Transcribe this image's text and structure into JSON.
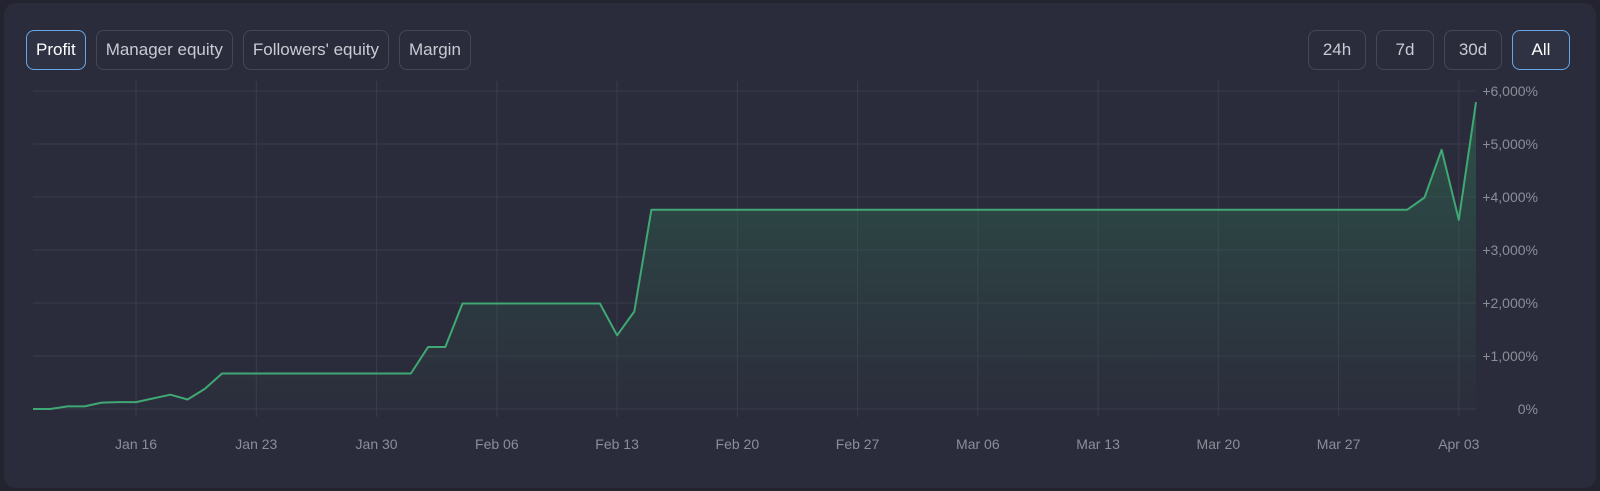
{
  "tabs": {
    "metric": [
      {
        "label": "Profit",
        "active": true
      },
      {
        "label": "Manager equity",
        "active": false
      },
      {
        "label": "Followers' equity",
        "active": false
      },
      {
        "label": "Margin",
        "active": false
      }
    ],
    "range": [
      {
        "label": "24h",
        "active": false
      },
      {
        "label": "7d",
        "active": false
      },
      {
        "label": "30d",
        "active": false
      },
      {
        "label": "All",
        "active": true
      }
    ]
  },
  "colors": {
    "line": "#3fa874",
    "fill": "#2f6e52",
    "grid": "#3a3c4b",
    "tab_active_border": "#6aa6e6"
  },
  "chart_data": {
    "type": "area",
    "x_start": "Jan 10",
    "x_end": "Apr 04",
    "x_tick_labels": [
      "Jan 16",
      "Jan 23",
      "Jan 30",
      "Feb 06",
      "Feb 13",
      "Feb 20",
      "Feb 27",
      "Mar 06",
      "Mar 13",
      "Mar 20",
      "Mar 27",
      "Apr 03"
    ],
    "y_tick_labels": [
      "0%",
      "+1,000%",
      "+2,000%",
      "+3,000%",
      "+4,000%",
      "+5,000%",
      "+6,000%"
    ],
    "y_ticks": [
      0,
      1000,
      2000,
      3000,
      4000,
      5000,
      6000
    ],
    "ylim": [
      0,
      6000
    ],
    "y_unit": "%",
    "grid": true,
    "y_axis_position": "right",
    "series": [
      {
        "points": [
          [
            "Jan 10",
            0
          ],
          [
            "Jan 11",
            0
          ],
          [
            "Jan 12",
            50
          ],
          [
            "Jan 13",
            50
          ],
          [
            "Jan 14",
            120
          ],
          [
            "Jan 15",
            130
          ],
          [
            "Jan 16",
            130
          ],
          [
            "Jan 17",
            200
          ],
          [
            "Jan 18",
            270
          ],
          [
            "Jan 19",
            180
          ],
          [
            "Jan 20",
            380
          ],
          [
            "Jan 21",
            670
          ],
          [
            "Feb 01",
            670
          ],
          [
            "Feb 02",
            1170
          ],
          [
            "Feb 03",
            1170
          ],
          [
            "Feb 04",
            1990
          ],
          [
            "Feb 12",
            1990
          ],
          [
            "Feb 13",
            1390
          ],
          [
            "Feb 14",
            1840
          ],
          [
            "Feb 15",
            3760
          ],
          [
            "Mar 31",
            3760
          ],
          [
            "Apr 01",
            3990
          ],
          [
            "Apr 02",
            4890
          ],
          [
            "Apr 03",
            3570
          ],
          [
            "Apr 04",
            5790
          ]
        ]
      }
    ]
  }
}
